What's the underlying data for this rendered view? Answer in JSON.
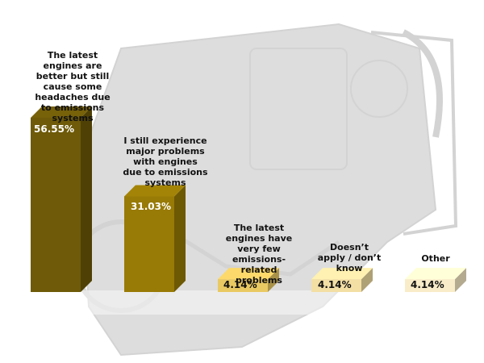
{
  "chart_data": {
    "type": "bar",
    "title": "",
    "xlabel": "",
    "ylabel": "",
    "ylim": [
      0,
      60
    ],
    "categories": [
      "The latest engines are better but still cause some headaches due to emissions systems",
      "I still experience major problems with engines due to emissions systems",
      "The latest engines have very few emissions-related problems",
      "Doesn’t apply / don’t know",
      "Other"
    ],
    "values": [
      56.55,
      31.03,
      4.14,
      4.14,
      4.14
    ],
    "value_labels": [
      "56.55%",
      "31.03%",
      "4.14%",
      "4.14%",
      "4.14%"
    ],
    "bar_colors": [
      "#6e5a08",
      "#987a06",
      "#e9c962",
      "#f3dfa4",
      "#f9ecc8"
    ],
    "label_colors": [
      "#ffffff",
      "#ffffff",
      "#111111",
      "#111111",
      "#111111"
    ],
    "grid": false,
    "legend": "none"
  }
}
